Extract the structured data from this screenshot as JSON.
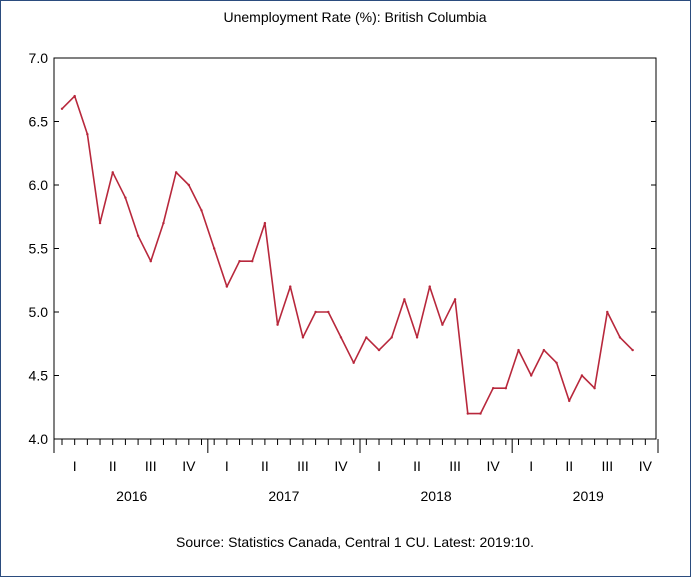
{
  "chart_data": {
    "type": "line",
    "title": "Unemployment Rate (%): British Columbia",
    "source": "Source: Statistics Canada, Central 1 CU. Latest: 2019:10.",
    "ylim": [
      4.0,
      7.0
    ],
    "yticks": [
      "4.0",
      "4.5",
      "5.0",
      "5.5",
      "6.0",
      "6.5",
      "7.0"
    ],
    "x_start": "2016-01",
    "x_end": "2019-10",
    "quarter_labels": [
      "I",
      "II",
      "III",
      "IV",
      "I",
      "II",
      "III",
      "IV",
      "I",
      "II",
      "III",
      "IV",
      "I",
      "II",
      "III",
      "IV"
    ],
    "year_labels": [
      "2016",
      "2017",
      "2018",
      "2019"
    ],
    "grid": false,
    "series": [
      {
        "color": "#b8283c",
        "values": [
          6.6,
          6.7,
          6.4,
          5.7,
          6.1,
          5.9,
          5.6,
          5.4,
          5.7,
          6.1,
          6.0,
          5.8,
          5.5,
          5.2,
          5.4,
          5.4,
          5.7,
          4.9,
          5.2,
          4.8,
          5.0,
          5.0,
          4.8,
          4.6,
          4.8,
          4.7,
          4.8,
          5.1,
          4.8,
          5.2,
          4.9,
          5.1,
          4.2,
          4.2,
          4.4,
          4.4,
          4.7,
          4.5,
          4.7,
          4.6,
          4.3,
          4.5,
          4.4,
          5.0,
          4.8,
          4.7
        ]
      }
    ]
  }
}
